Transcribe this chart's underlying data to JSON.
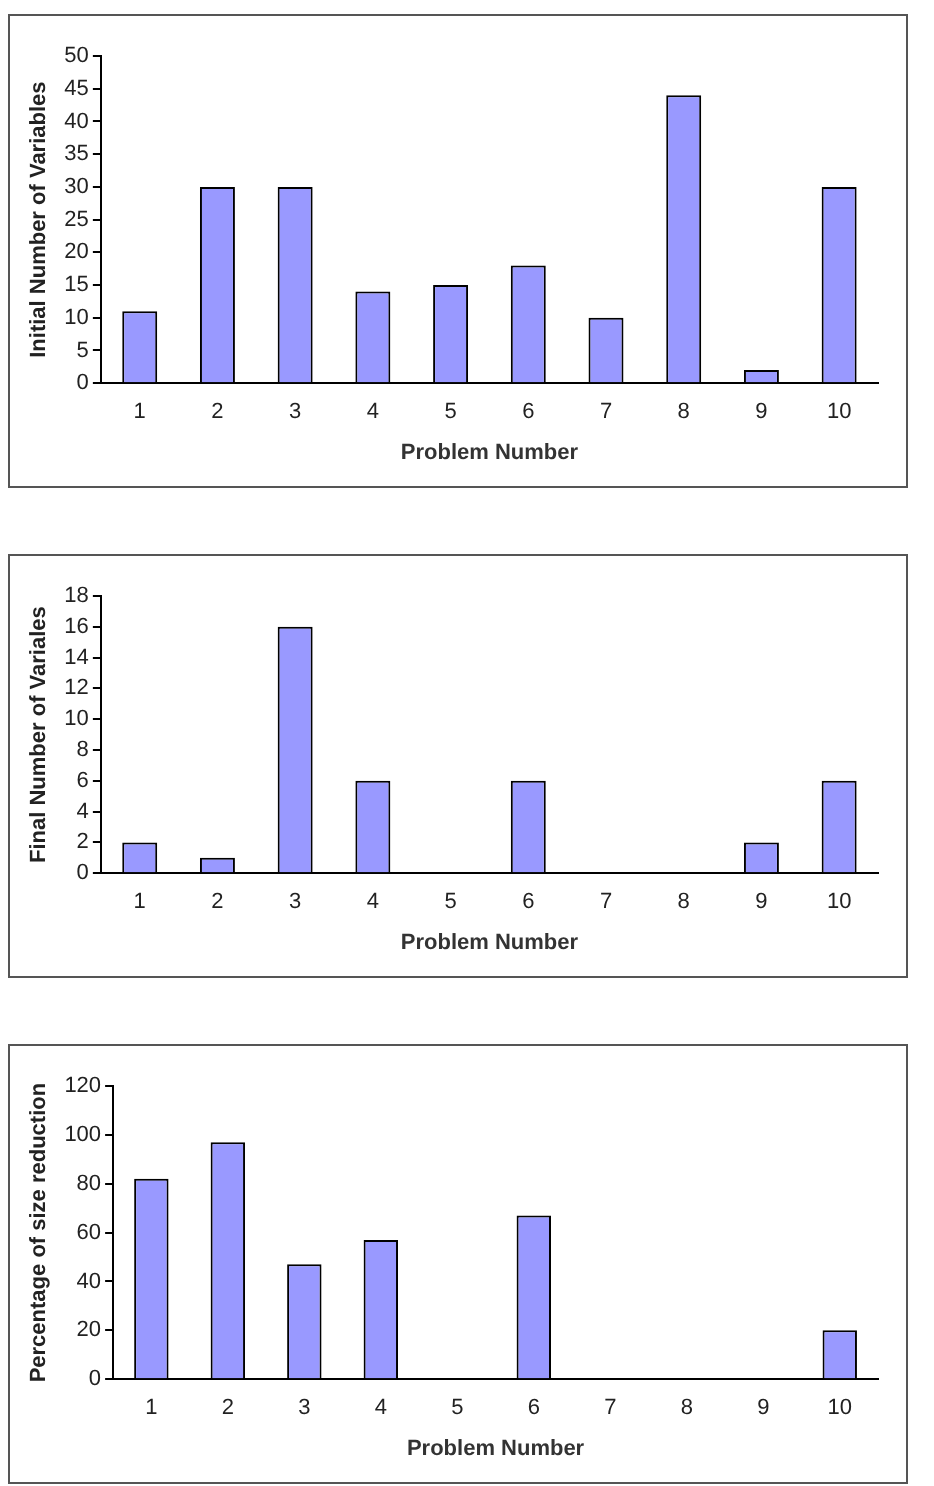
{
  "chart_data": [
    {
      "type": "bar",
      "xlabel": "Problem Number",
      "ylabel": "Initial Number of Variables",
      "categories": [
        "1",
        "2",
        "3",
        "4",
        "5",
        "6",
        "7",
        "8",
        "9",
        "10"
      ],
      "values": [
        11,
        30,
        30,
        14,
        15,
        18,
        10,
        44,
        2,
        30
      ],
      "color": "#9999ff",
      "ylim": [
        0,
        50
      ],
      "yticks": [
        0,
        5,
        10,
        15,
        20,
        25,
        30,
        35,
        40,
        45,
        50
      ],
      "grid": false,
      "legend": false
    },
    {
      "type": "bar",
      "xlabel": "Problem Number",
      "ylabel": "Final Number of Variales",
      "categories": [
        "1",
        "2",
        "3",
        "4",
        "5",
        "6",
        "7",
        "8",
        "9",
        "10"
      ],
      "values": [
        2,
        1,
        16,
        6,
        null,
        6,
        null,
        null,
        2,
        6
      ],
      "color": "#9999ff",
      "ylim": [
        0,
        18
      ],
      "yticks": [
        0,
        2,
        4,
        6,
        8,
        10,
        12,
        14,
        16,
        18
      ],
      "grid": false,
      "legend": false
    },
    {
      "type": "bar",
      "xlabel": "Problem Number",
      "ylabel": "Percentage of size reduction",
      "categories": [
        "1",
        "2",
        "3",
        "4",
        "5",
        "6",
        "7",
        "8",
        "9",
        "10"
      ],
      "values": [
        82,
        97,
        47,
        57,
        null,
        67,
        null,
        null,
        null,
        20
      ],
      "color": "#9999ff",
      "ylim": [
        0,
        120
      ],
      "yticks": [
        0,
        20,
        40,
        60,
        80,
        100,
        120
      ],
      "grid": false,
      "legend": false
    }
  ]
}
